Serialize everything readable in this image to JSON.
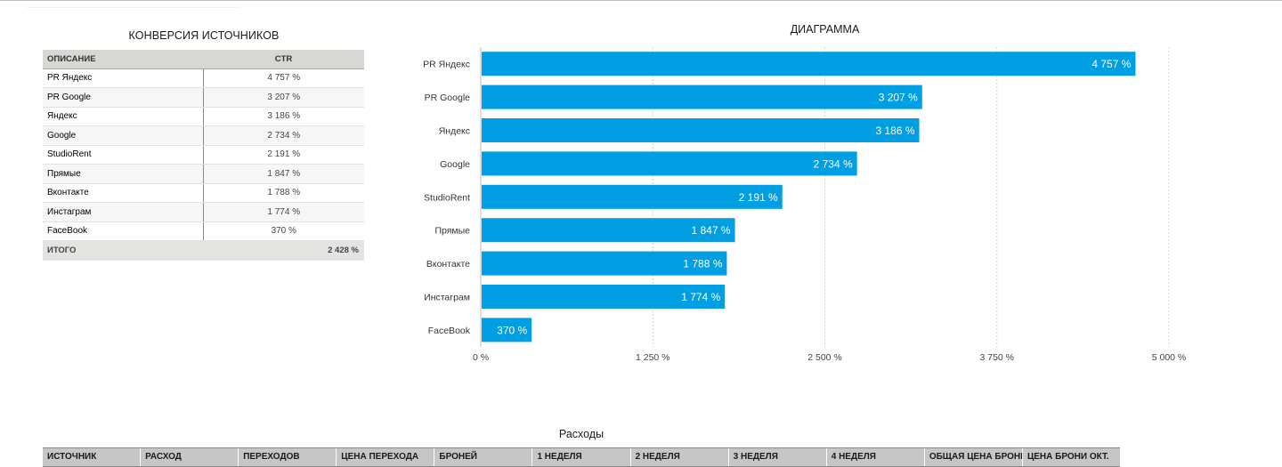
{
  "conversion": {
    "title": "КОНВЕРСИЯ ИСТОЧНИКОВ",
    "header_desc": "ОПИСАНИЕ",
    "header_ctr": "CTR",
    "rows": [
      {
        "name": "PR Яндекс",
        "ctr": "4 757 %"
      },
      {
        "name": "PR Google",
        "ctr": "3 207 %"
      },
      {
        "name": "Яндекс",
        "ctr": "3 186 %"
      },
      {
        "name": "Google",
        "ctr": "2 734 %"
      },
      {
        "name": "StudioRent",
        "ctr": "2 191 %"
      },
      {
        "name": "Прямые",
        "ctr": "1 847 %"
      },
      {
        "name": "Вконтакте",
        "ctr": "1 788 %"
      },
      {
        "name": "Инстаграм",
        "ctr": "1 774 %"
      },
      {
        "name": "FaceBook",
        "ctr": "370 %"
      }
    ],
    "total_label": "ИТОГО",
    "total_value": "2 428 %"
  },
  "chart_data": {
    "type": "bar",
    "orientation": "horizontal",
    "title": "ДИАГРАММА",
    "categories": [
      "PR Яндекс",
      "PR Google",
      "Яндекс",
      "Google",
      "StudioRent",
      "Прямые",
      "Вконтакте",
      "Инстаграм",
      "FaceBook"
    ],
    "values": [
      4757,
      3207,
      3186,
      2734,
      2191,
      1847,
      1788,
      1774,
      370
    ],
    "value_labels": [
      "4 757 %",
      "3 207 %",
      "3 186 %",
      "2 734 %",
      "2 191 %",
      "1 847 %",
      "1 788 %",
      "1 774 %",
      "370 %"
    ],
    "xlim": [
      0,
      5000
    ],
    "xticks": [
      0,
      1250,
      2500,
      3750,
      5000
    ],
    "xtick_labels": [
      "0 %",
      "1 250 %",
      "2 500 %",
      "3 750 %",
      "5 000 %"
    ],
    "grid": true,
    "bar_color": "#009fe3",
    "label_color": "#ffffff"
  },
  "expenses": {
    "title": "Расходы",
    "columns": [
      "ИСТОЧНИК",
      "РАСХОД",
      "ПЕРЕХОДОВ",
      "ЦЕНА ПЕРЕХОДА",
      "БРОНЕЙ",
      "1 НЕДЕЛЯ",
      "2 НЕДЕЛЯ",
      "3 НЕДЕЛЯ",
      "4 НЕДЕЛЯ",
      "ОБЩАЯ ЦЕНА БРОНИ",
      "ЦЕНА БРОНИ ОКТ."
    ]
  }
}
